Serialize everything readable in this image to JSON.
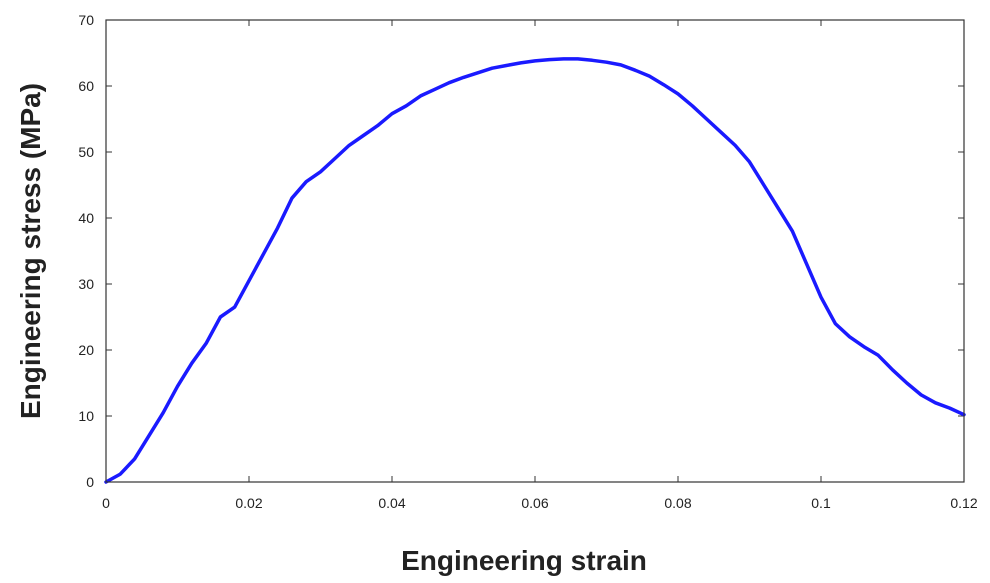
{
  "chart_data": {
    "type": "line",
    "title": "",
    "xlabel": "Engineering strain",
    "ylabel": "Engineering stress (MPa)",
    "xlim": [
      0,
      0.12
    ],
    "ylim": [
      0,
      70
    ],
    "x_ticks": [
      0,
      0.02,
      0.04,
      0.06,
      0.08,
      0.1,
      0.12
    ],
    "x_tick_labels": [
      "0",
      "0.02",
      "0.04",
      "0.06",
      "0.08",
      "0.1",
      "0.12"
    ],
    "y_ticks": [
      0,
      10,
      20,
      30,
      40,
      50,
      60,
      70
    ],
    "y_tick_labels": [
      "0",
      "10",
      "20",
      "30",
      "40",
      "50",
      "60",
      "70"
    ],
    "grid": false,
    "legend": "none",
    "series": [
      {
        "color": "#1a1aff",
        "x": [
          0,
          0.002,
          0.004,
          0.006,
          0.008,
          0.01,
          0.012,
          0.014,
          0.016,
          0.018,
          0.02,
          0.022,
          0.024,
          0.026,
          0.028,
          0.03,
          0.032,
          0.034,
          0.036,
          0.038,
          0.04,
          0.042,
          0.044,
          0.046,
          0.048,
          0.05,
          0.052,
          0.054,
          0.056,
          0.058,
          0.06,
          0.062,
          0.064,
          0.066,
          0.068,
          0.07,
          0.072,
          0.074,
          0.076,
          0.078,
          0.08,
          0.082,
          0.084,
          0.086,
          0.088,
          0.09,
          0.092,
          0.094,
          0.096,
          0.098,
          0.1,
          0.102,
          0.104,
          0.106,
          0.108,
          0.11,
          0.112,
          0.114,
          0.116,
          0.118,
          0.12
        ],
        "y": [
          0,
          1.2,
          3.5,
          7,
          10.5,
          14.5,
          18,
          21,
          25,
          26.5,
          30.5,
          34.5,
          38.5,
          43,
          45.5,
          47,
          49,
          51,
          52.5,
          54,
          55.8,
          57,
          58.5,
          59.5,
          60.5,
          61.3,
          62,
          62.7,
          63.1,
          63.5,
          63.8,
          64,
          64.1,
          64.1,
          63.9,
          63.6,
          63.2,
          62.4,
          61.5,
          60.2,
          58.8,
          57,
          55,
          53,
          51,
          48.5,
          45,
          41.5,
          38,
          33,
          28,
          24,
          22,
          20.5,
          19.2,
          17,
          15,
          13.2,
          12,
          11.2,
          10.2
        ]
      }
    ]
  }
}
